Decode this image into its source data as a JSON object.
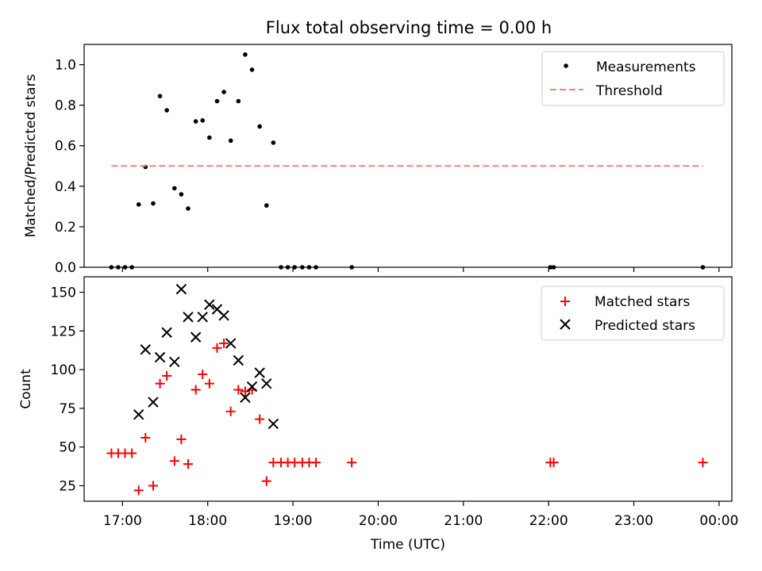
{
  "figure": {
    "title": "Flux total observing time = 0.00 h"
  },
  "chart_data": [
    {
      "type": "scatter",
      "ylabel": "Matched/Predicted stars",
      "xlabel": "",
      "xlim": [
        16.55,
        24.15
      ],
      "ylim": [
        0.0,
        1.1
      ],
      "yticks": [
        0.0,
        0.2,
        0.4,
        0.6,
        0.8,
        1.0
      ],
      "ytick_labels": [
        "0.0",
        "0.2",
        "0.4",
        "0.6",
        "0.8",
        "1.0"
      ],
      "xticks": [
        17,
        18,
        19,
        20,
        21,
        22,
        23,
        24
      ],
      "legend_position": "top-right",
      "series": [
        {
          "name": "Measurements",
          "marker": "dot",
          "color": "#000000",
          "x": [
            16.87,
            16.95,
            17.03,
            17.11,
            17.19,
            17.27,
            17.36,
            17.44,
            17.52,
            17.61,
            17.69,
            17.77,
            17.86,
            17.94,
            18.02,
            18.11,
            18.19,
            18.27,
            18.36,
            18.44,
            18.52,
            18.61,
            18.69,
            18.77,
            18.86,
            18.94,
            19.02,
            19.11,
            19.19,
            19.27,
            19.69,
            22.02,
            22.06,
            23.81
          ],
          "y": [
            0.0,
            0.0,
            0.0,
            0.0,
            0.31,
            0.495,
            0.315,
            0.845,
            0.775,
            0.39,
            0.36,
            0.29,
            0.72,
            0.725,
            0.64,
            0.82,
            0.865,
            0.625,
            0.82,
            1.05,
            0.975,
            0.695,
            0.305,
            0.615,
            0.0,
            0.0,
            0.0,
            0.0,
            0.0,
            0.0,
            0.0,
            0.0,
            0.0,
            0.0
          ]
        },
        {
          "name": "Threshold",
          "marker": "dashed-line",
          "color": "#ff7f7f",
          "x": [
            16.87,
            23.81
          ],
          "y": [
            0.5,
            0.5
          ]
        }
      ]
    },
    {
      "type": "scatter",
      "ylabel": "Count",
      "xlabel": "Time (UTC)",
      "xlim": [
        16.55,
        24.15
      ],
      "ylim": [
        15,
        160
      ],
      "yticks": [
        25,
        50,
        75,
        100,
        125,
        150
      ],
      "ytick_labels": [
        "25",
        "50",
        "75",
        "100",
        "125",
        "150"
      ],
      "xticks": [
        17,
        18,
        19,
        20,
        21,
        22,
        23,
        24
      ],
      "xtick_labels": [
        "17:00",
        "18:00",
        "19:00",
        "20:00",
        "21:00",
        "22:00",
        "23:00",
        "00:00"
      ],
      "legend_position": "top-right",
      "series": [
        {
          "name": "Matched stars",
          "marker": "plus",
          "color": "#ff0000",
          "x": [
            16.87,
            16.95,
            17.03,
            17.11,
            17.19,
            17.27,
            17.36,
            17.44,
            17.52,
            17.61,
            17.69,
            17.77,
            17.86,
            17.94,
            18.02,
            18.11,
            18.19,
            18.27,
            18.36,
            18.44,
            18.52,
            18.61,
            18.69,
            18.77,
            18.86,
            18.94,
            19.02,
            19.11,
            19.19,
            19.27,
            19.69,
            22.02,
            22.06,
            23.81
          ],
          "y": [
            46,
            46,
            46,
            46,
            22,
            56,
            25,
            91,
            96,
            41,
            55,
            39,
            87,
            97,
            91,
            114,
            117,
            73,
            87,
            86,
            87,
            68,
            28,
            40,
            40,
            40,
            40,
            40,
            40,
            40,
            40,
            40,
            40,
            40
          ]
        },
        {
          "name": "Predicted stars",
          "marker": "x",
          "color": "#000000",
          "x": [
            17.19,
            17.27,
            17.36,
            17.44,
            17.52,
            17.61,
            17.69,
            17.77,
            17.86,
            17.94,
            18.02,
            18.11,
            18.19,
            18.27,
            18.36,
            18.44,
            18.52,
            18.61,
            18.69,
            18.77
          ],
          "y": [
            71,
            113,
            79,
            108,
            124,
            105,
            152,
            134,
            121,
            134,
            142,
            139,
            135,
            117,
            106,
            82,
            89,
            98,
            91,
            65
          ]
        }
      ]
    }
  ]
}
